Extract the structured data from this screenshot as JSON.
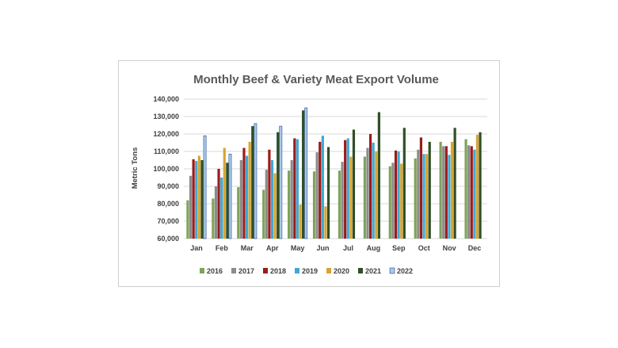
{
  "chart_data": {
    "type": "bar",
    "title": "Monthly Beef & Variety Meat Export Volume",
    "ylabel": "Metric Tons",
    "xlabel": "",
    "ylim": [
      60000,
      140000
    ],
    "yticks": [
      "60,000",
      "70,000",
      "80,000",
      "90,000",
      "100,000",
      "110,000",
      "120,000",
      "130,000",
      "140,000"
    ],
    "grid": true,
    "legend_position": "bottom",
    "categories": [
      "Jan",
      "Feb",
      "Mar",
      "Apr",
      "May",
      "Jun",
      "Jul",
      "Aug",
      "Sep",
      "Oct",
      "Nov",
      "Dec"
    ],
    "series": [
      {
        "name": "2016",
        "color": "#7fa35a",
        "values": [
          82000,
          83000,
          89500,
          88000,
          99000,
          98500,
          99000,
          107000,
          101500,
          106000,
          115500,
          117000
        ]
      },
      {
        "name": "2017",
        "color": "#8c8c8c",
        "values": [
          96000,
          90000,
          105000,
          99500,
          105000,
          109500,
          104000,
          112000,
          103500,
          111000,
          113000,
          113500
        ]
      },
      {
        "name": "2018",
        "color": "#9b1b1b",
        "values": [
          105500,
          100000,
          112000,
          111000,
          117500,
          115500,
          116500,
          120000,
          110500,
          118000,
          113000,
          113000
        ]
      },
      {
        "name": "2019",
        "color": "#3fa9d4",
        "values": [
          104500,
          95000,
          107500,
          105000,
          117000,
          119000,
          117500,
          115000,
          110000,
          108500,
          108000,
          111000
        ]
      },
      {
        "name": "2020",
        "color": "#d9a530",
        "values": [
          107500,
          112000,
          115500,
          97500,
          79500,
          78500,
          107000,
          110000,
          103000,
          108500,
          115500,
          119500
        ]
      },
      {
        "name": "2021",
        "color": "#2f4f26",
        "values": [
          105000,
          103500,
          124500,
          121000,
          133500,
          112500,
          122500,
          132500,
          123500,
          115500,
          123500,
          121000
        ]
      },
      {
        "name": "2022",
        "color": "#a8c8ec",
        "values": [
          119000,
          108500,
          126000,
          124500,
          135000,
          null,
          null,
          null,
          null,
          null,
          null,
          null
        ]
      }
    ]
  }
}
